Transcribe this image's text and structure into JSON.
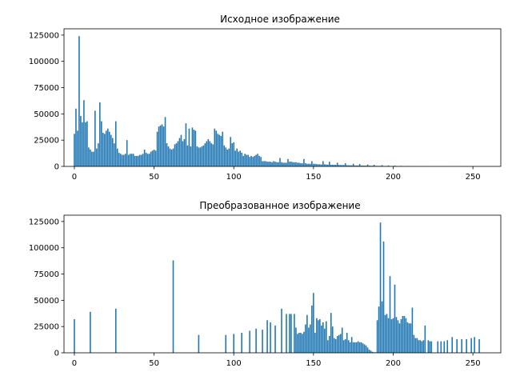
{
  "chart_data": [
    {
      "type": "bar",
      "title": "Исходное изображение",
      "xlim": [
        -6.5,
        267.5
      ],
      "ylim": [
        0,
        131000
      ],
      "xticks": [
        0,
        50,
        100,
        150,
        200,
        250
      ],
      "yticks": [
        0,
        25000,
        50000,
        75000,
        100000,
        125000
      ],
      "grid": false,
      "bars": [
        [
          0,
          31000
        ],
        [
          1,
          55000
        ],
        [
          2,
          34000
        ],
        [
          3,
          124000
        ],
        [
          4,
          48000
        ],
        [
          5,
          42000
        ],
        [
          6,
          63000
        ],
        [
          7,
          42000
        ],
        [
          8,
          43000
        ],
        [
          9,
          18000
        ],
        [
          10,
          16000
        ],
        [
          11,
          14000
        ],
        [
          12,
          14000
        ],
        [
          13,
          53000
        ],
        [
          14,
          17000
        ],
        [
          15,
          22000
        ],
        [
          16,
          61000
        ],
        [
          17,
          43000
        ],
        [
          18,
          32000
        ],
        [
          19,
          31000
        ],
        [
          20,
          34000
        ],
        [
          21,
          36000
        ],
        [
          22,
          33000
        ],
        [
          23,
          30000
        ],
        [
          24,
          27000
        ],
        [
          25,
          22000
        ],
        [
          26,
          43000
        ],
        [
          27,
          17000
        ],
        [
          28,
          13000
        ],
        [
          29,
          12000
        ],
        [
          30,
          11000
        ],
        [
          31,
          11000
        ],
        [
          32,
          12000
        ],
        [
          33,
          25000
        ],
        [
          34,
          11000
        ],
        [
          35,
          12000
        ],
        [
          36,
          12000
        ],
        [
          37,
          12000
        ],
        [
          38,
          10000
        ],
        [
          39,
          10000
        ],
        [
          40,
          10000
        ],
        [
          41,
          11000
        ],
        [
          42,
          11000
        ],
        [
          43,
          12000
        ],
        [
          44,
          16000
        ],
        [
          45,
          13000
        ],
        [
          46,
          12000
        ],
        [
          47,
          12000
        ],
        [
          48,
          14000
        ],
        [
          49,
          15000
        ],
        [
          50,
          16000
        ],
        [
          51,
          15000
        ],
        [
          52,
          33000
        ],
        [
          53,
          38000
        ],
        [
          54,
          39000
        ],
        [
          55,
          40000
        ],
        [
          56,
          38000
        ],
        [
          57,
          47000
        ],
        [
          58,
          22000
        ],
        [
          59,
          19000
        ],
        [
          60,
          17000
        ],
        [
          61,
          16000
        ],
        [
          62,
          17000
        ],
        [
          63,
          21000
        ],
        [
          64,
          22000
        ],
        [
          65,
          24000
        ],
        [
          66,
          27000
        ],
        [
          67,
          30000
        ],
        [
          68,
          24000
        ],
        [
          69,
          26000
        ],
        [
          70,
          41000
        ],
        [
          71,
          20000
        ],
        [
          72,
          36000
        ],
        [
          73,
          19000
        ],
        [
          74,
          37000
        ],
        [
          75,
          35000
        ],
        [
          76,
          34000
        ],
        [
          77,
          19000
        ],
        [
          78,
          18000
        ],
        [
          79,
          18000
        ],
        [
          80,
          19000
        ],
        [
          81,
          20000
        ],
        [
          82,
          22000
        ],
        [
          83,
          24000
        ],
        [
          84,
          26000
        ],
        [
          85,
          24000
        ],
        [
          86,
          22000
        ],
        [
          87,
          21000
        ],
        [
          88,
          36000
        ],
        [
          89,
          34000
        ],
        [
          90,
          31000
        ],
        [
          91,
          30000
        ],
        [
          92,
          29000
        ],
        [
          93,
          33000
        ],
        [
          94,
          20000
        ],
        [
          95,
          18000
        ],
        [
          96,
          16000
        ],
        [
          97,
          17000
        ],
        [
          98,
          28000
        ],
        [
          99,
          22000
        ],
        [
          100,
          23000
        ],
        [
          101,
          15000
        ],
        [
          102,
          17000
        ],
        [
          103,
          14000
        ],
        [
          104,
          15000
        ],
        [
          105,
          13000
        ],
        [
          106,
          10000
        ],
        [
          107,
          12000
        ],
        [
          108,
          11000
        ],
        [
          109,
          11000
        ],
        [
          110,
          9000
        ],
        [
          111,
          10000
        ],
        [
          112,
          9000
        ],
        [
          113,
          10000
        ],
        [
          114,
          11000
        ],
        [
          115,
          12000
        ],
        [
          116,
          10000
        ],
        [
          117,
          9000
        ],
        [
          118,
          5000
        ],
        [
          119,
          5000
        ],
        [
          120,
          5000
        ],
        [
          121,
          4500
        ],
        [
          122,
          4500
        ],
        [
          123,
          4500
        ],
        [
          124,
          4000
        ],
        [
          125,
          5000
        ],
        [
          126,
          4500
        ],
        [
          127,
          4000
        ],
        [
          128,
          4000
        ],
        [
          129,
          8000
        ],
        [
          130,
          4000
        ],
        [
          131,
          3500
        ],
        [
          132,
          3500
        ],
        [
          133,
          3500
        ],
        [
          134,
          7000
        ],
        [
          135,
          4500
        ],
        [
          136,
          4500
        ],
        [
          137,
          4000
        ],
        [
          138,
          4000
        ],
        [
          139,
          4000
        ],
        [
          140,
          3500
        ],
        [
          141,
          3500
        ],
        [
          142,
          3000
        ],
        [
          143,
          3000
        ],
        [
          144,
          7000
        ],
        [
          145,
          3000
        ],
        [
          146,
          2500
        ],
        [
          147,
          2500
        ],
        [
          148,
          2500
        ],
        [
          149,
          5000
        ],
        [
          150,
          2500
        ],
        [
          151,
          2500
        ],
        [
          152,
          2200
        ],
        [
          153,
          2000
        ],
        [
          154,
          2000
        ],
        [
          155,
          1800
        ],
        [
          156,
          5000
        ],
        [
          157,
          2000
        ],
        [
          158,
          1800
        ],
        [
          159,
          1700
        ],
        [
          160,
          4500
        ],
        [
          161,
          1600
        ],
        [
          162,
          1500
        ],
        [
          163,
          1500
        ],
        [
          164,
          1500
        ],
        [
          165,
          3500
        ],
        [
          166,
          1400
        ],
        [
          167,
          1300
        ],
        [
          168,
          1300
        ],
        [
          169,
          1300
        ],
        [
          170,
          3000
        ],
        [
          171,
          1200
        ],
        [
          172,
          1100
        ],
        [
          173,
          1000
        ],
        [
          174,
          1000
        ],
        [
          175,
          2500
        ],
        [
          176,
          900
        ],
        [
          177,
          900
        ],
        [
          178,
          900
        ],
        [
          179,
          2200
        ],
        [
          180,
          800
        ],
        [
          181,
          800
        ],
        [
          182,
          700
        ],
        [
          183,
          700
        ],
        [
          184,
          1800
        ],
        [
          185,
          700
        ],
        [
          186,
          600
        ],
        [
          187,
          600
        ],
        [
          188,
          1500
        ],
        [
          189,
          500
        ],
        [
          190,
          500
        ],
        [
          191,
          500
        ],
        [
          192,
          500
        ],
        [
          193,
          1200
        ],
        [
          194,
          400
        ],
        [
          195,
          400
        ],
        [
          196,
          400
        ],
        [
          197,
          900
        ],
        [
          198,
          300
        ],
        [
          199,
          300
        ],
        [
          200,
          300
        ],
        [
          201,
          700
        ],
        [
          202,
          300
        ],
        [
          203,
          200
        ],
        [
          204,
          200
        ],
        [
          205,
          500
        ],
        [
          206,
          200
        ],
        [
          207,
          150
        ],
        [
          208,
          150
        ],
        [
          209,
          400
        ],
        [
          210,
          150
        ],
        [
          211,
          150
        ],
        [
          212,
          150
        ],
        [
          213,
          300
        ],
        [
          214,
          100
        ],
        [
          215,
          100
        ],
        [
          216,
          100
        ],
        [
          217,
          200
        ],
        [
          218,
          100
        ],
        [
          219,
          100
        ],
        [
          220,
          100
        ],
        [
          221,
          150
        ],
        [
          222,
          80
        ],
        [
          223,
          80
        ],
        [
          224,
          80
        ],
        [
          225,
          100
        ],
        [
          226,
          60
        ],
        [
          227,
          60
        ],
        [
          228,
          60
        ],
        [
          229,
          80
        ],
        [
          230,
          50
        ],
        [
          231,
          50
        ],
        [
          232,
          50
        ],
        [
          233,
          50
        ],
        [
          234,
          40
        ],
        [
          235,
          40
        ],
        [
          236,
          40
        ],
        [
          237,
          40
        ],
        [
          238,
          30
        ],
        [
          239,
          30
        ],
        [
          240,
          30
        ],
        [
          241,
          30
        ],
        [
          242,
          20
        ],
        [
          243,
          20
        ],
        [
          244,
          20
        ],
        [
          245,
          20
        ],
        [
          246,
          10
        ],
        [
          247,
          10
        ],
        [
          248,
          10
        ],
        [
          249,
          10
        ],
        [
          250,
          10
        ],
        [
          251,
          10
        ],
        [
          252,
          5
        ],
        [
          253,
          5
        ],
        [
          254,
          5
        ],
        [
          255,
          5
        ]
      ]
    },
    {
      "type": "bar",
      "title": "Преобразованное изображение",
      "xlim": [
        -6.5,
        267.5
      ],
      "ylim": [
        0,
        131000
      ],
      "xticks": [
        0,
        50,
        100,
        150,
        200,
        250
      ],
      "yticks": [
        0,
        25000,
        50000,
        75000,
        100000,
        125000
      ],
      "grid": false,
      "bars": [
        [
          0,
          32000
        ],
        [
          10,
          39000
        ],
        [
          26,
          42000
        ],
        [
          62,
          88000
        ],
        [
          78,
          17000
        ],
        [
          95,
          17000
        ],
        [
          100,
          18000
        ],
        [
          105,
          19000
        ],
        [
          110,
          21000
        ],
        [
          114,
          23000
        ],
        [
          118,
          22000
        ],
        [
          121,
          31000
        ],
        [
          123,
          29000
        ],
        [
          126,
          26000
        ],
        [
          130,
          42000
        ],
        [
          133,
          37000
        ],
        [
          135,
          37000
        ],
        [
          136,
          37000
        ],
        [
          138,
          37000
        ],
        [
          139,
          24000
        ],
        [
          140,
          18000
        ],
        [
          141,
          19000
        ],
        [
          142,
          19000
        ],
        [
          143,
          18000
        ],
        [
          144,
          20000
        ],
        [
          145,
          27000
        ],
        [
          146,
          36000
        ],
        [
          147,
          24000
        ],
        [
          148,
          27000
        ],
        [
          149,
          45000
        ],
        [
          150,
          57000
        ],
        [
          151,
          19000
        ],
        [
          152,
          33000
        ],
        [
          153,
          31000
        ],
        [
          154,
          32000
        ],
        [
          155,
          26000
        ],
        [
          156,
          29000
        ],
        [
          157,
          23000
        ],
        [
          158,
          30000
        ],
        [
          159,
          12000
        ],
        [
          160,
          16000
        ],
        [
          161,
          38000
        ],
        [
          162,
          25000
        ],
        [
          163,
          14000
        ],
        [
          164,
          13000
        ],
        [
          165,
          16000
        ],
        [
          166,
          17000
        ],
        [
          167,
          18000
        ],
        [
          168,
          24000
        ],
        [
          169,
          12000
        ],
        [
          170,
          13000
        ],
        [
          171,
          19000
        ],
        [
          172,
          12000
        ],
        [
          173,
          10000
        ],
        [
          174,
          15000
        ],
        [
          175,
          10000
        ],
        [
          176,
          10000
        ],
        [
          177,
          10000
        ],
        [
          178,
          11000
        ],
        [
          179,
          10000
        ],
        [
          180,
          10000
        ],
        [
          181,
          9000
        ],
        [
          182,
          8000
        ],
        [
          183,
          7000
        ],
        [
          184,
          5000
        ],
        [
          185,
          3000
        ],
        [
          186,
          2000
        ],
        [
          187,
          1000
        ],
        [
          188,
          500
        ],
        [
          189,
          500
        ],
        [
          190,
          31000
        ],
        [
          191,
          44000
        ],
        [
          192,
          124000
        ],
        [
          193,
          49000
        ],
        [
          194,
          106000
        ],
        [
          195,
          36000
        ],
        [
          196,
          37000
        ],
        [
          197,
          33000
        ],
        [
          198,
          73000
        ],
        [
          199,
          32000
        ],
        [
          200,
          33000
        ],
        [
          201,
          65000
        ],
        [
          202,
          34000
        ],
        [
          203,
          31000
        ],
        [
          204,
          28000
        ],
        [
          205,
          32000
        ],
        [
          206,
          35000
        ],
        [
          207,
          35000
        ],
        [
          208,
          33000
        ],
        [
          209,
          29000
        ],
        [
          210,
          28000
        ],
        [
          211,
          28000
        ],
        [
          212,
          43000
        ],
        [
          213,
          17000
        ],
        [
          214,
          14000
        ],
        [
          215,
          14000
        ],
        [
          216,
          12000
        ],
        [
          217,
          12000
        ],
        [
          218,
          11000
        ],
        [
          219,
          12000
        ],
        [
          220,
          26000
        ],
        [
          222,
          12000
        ],
        [
          223,
          11000
        ],
        [
          224,
          11000
        ],
        [
          228,
          11000
        ],
        [
          230,
          11000
        ],
        [
          232,
          11000
        ],
        [
          234,
          12000
        ],
        [
          237,
          15000
        ],
        [
          240,
          13000
        ],
        [
          243,
          13000
        ],
        [
          246,
          13000
        ],
        [
          249,
          14000
        ],
        [
          251,
          15000
        ],
        [
          254,
          13000
        ]
      ]
    }
  ]
}
